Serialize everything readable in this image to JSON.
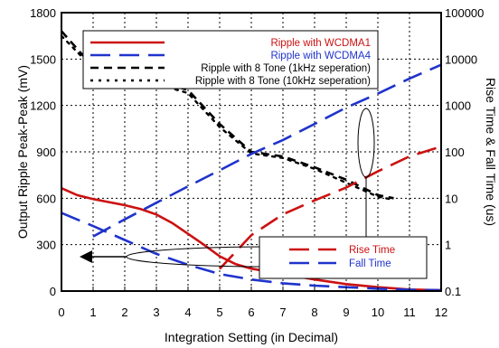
{
  "chart_data": {
    "type": "line",
    "xlabel": "Integration Setting (in Decimal)",
    "ylabel_left": "Output Ripple Peak-Peak (mV)",
    "ylabel_right": "Rise Time & Fall Time (us)",
    "xlim": [
      0,
      12
    ],
    "ylim_left": [
      0,
      1800
    ],
    "ylim_right": [
      0.1,
      100000
    ],
    "right_axis_scale": "log",
    "grid": true,
    "x_ticks": [
      "0",
      "1",
      "2",
      "3",
      "4",
      "5",
      "6",
      "7",
      "8",
      "9",
      "10",
      "11",
      "12"
    ],
    "y_left_ticks": [
      "0",
      "300",
      "600",
      "900",
      "1200",
      "1500",
      "1800"
    ],
    "y_right_ticks": [
      "0.1",
      "1",
      "10",
      "100",
      "1000",
      "10000",
      "100000"
    ],
    "legend_top": [
      {
        "label": "Ripple with WCDMA1",
        "color": "#cc1111",
        "style": "solid"
      },
      {
        "label": "Ripple with WCDMA4",
        "color": "#1f33cc",
        "style": "dash-long"
      },
      {
        "label": "Ripple with 8 Tone (1kHz seperation)",
        "color": "#000000",
        "style": "dash"
      },
      {
        "label": "Ripple with 8 Tone (10kHz seperation)",
        "color": "#000000",
        "style": "dot"
      }
    ],
    "legend_bottom": [
      {
        "label": "Rise Time",
        "color": "#cc1111",
        "style": "dash-long"
      },
      {
        "label": "Fall Time",
        "color": "#1f33cc",
        "style": "dash-long"
      }
    ],
    "series": [
      {
        "name": "Ripple with WCDMA1",
        "axis": "left",
        "color": "#cc1111",
        "style": "solid",
        "x": [
          0,
          0.5,
          1,
          1.5,
          2,
          2.5,
          3,
          3.5,
          4,
          4.5,
          5,
          5.5,
          6,
          7,
          8,
          9,
          10,
          11,
          12
        ],
        "y": [
          665,
          620,
          595,
          575,
          555,
          530,
          495,
          440,
          370,
          300,
          225,
          175,
          145,
          110,
          75,
          45,
          25,
          10,
          5
        ]
      },
      {
        "name": "Ripple with WCDMA4",
        "axis": "left",
        "color": "#1f33cc",
        "style": "dash-long",
        "x": [
          0,
          1,
          2,
          3,
          4,
          5,
          6,
          7,
          8,
          9,
          10,
          11,
          12
        ],
        "y": [
          505,
          420,
          330,
          240,
          170,
          110,
          75,
          50,
          35,
          25,
          15,
          8,
          5
        ]
      },
      {
        "name": "Ripple with 8 Tone (1kHz seperation)",
        "axis": "left",
        "color": "#000000",
        "style": "dash",
        "x": [
          0,
          1,
          2,
          3,
          4,
          5,
          6,
          7,
          8,
          9,
          10,
          10.5
        ],
        "y": [
          1680,
          1450,
          1420,
          1360,
          1300,
          1080,
          900,
          870,
          800,
          720,
          620,
          600
        ]
      },
      {
        "name": "Ripple with 8 Tone (10kHz seperation)",
        "axis": "left",
        "color": "#000000",
        "style": "dot",
        "x": [
          0,
          1,
          2,
          3,
          4,
          5,
          6,
          7,
          8,
          9,
          10,
          10.5
        ],
        "y": [
          1650,
          1440,
          1400,
          1340,
          1280,
          1060,
          890,
          860,
          790,
          700,
          610,
          590
        ]
      },
      {
        "name": "Rise Time",
        "axis": "right",
        "color": "#cc1111",
        "style": "dash-long",
        "x": [
          5,
          6,
          7,
          8,
          9,
          10,
          11,
          12
        ],
        "y": [
          0.3,
          1.6,
          4.5,
          9,
          17,
          38,
          80,
          130
        ]
      },
      {
        "name": "Fall Time",
        "axis": "right",
        "color": "#1f33cc",
        "style": "dash-long",
        "x": [
          1,
          2,
          3,
          4,
          5,
          6,
          7,
          8,
          9,
          10,
          11,
          12
        ],
        "y": [
          1.5,
          3.5,
          8,
          18,
          40,
          90,
          180,
          400,
          900,
          1800,
          3800,
          7500
        ]
      }
    ]
  }
}
